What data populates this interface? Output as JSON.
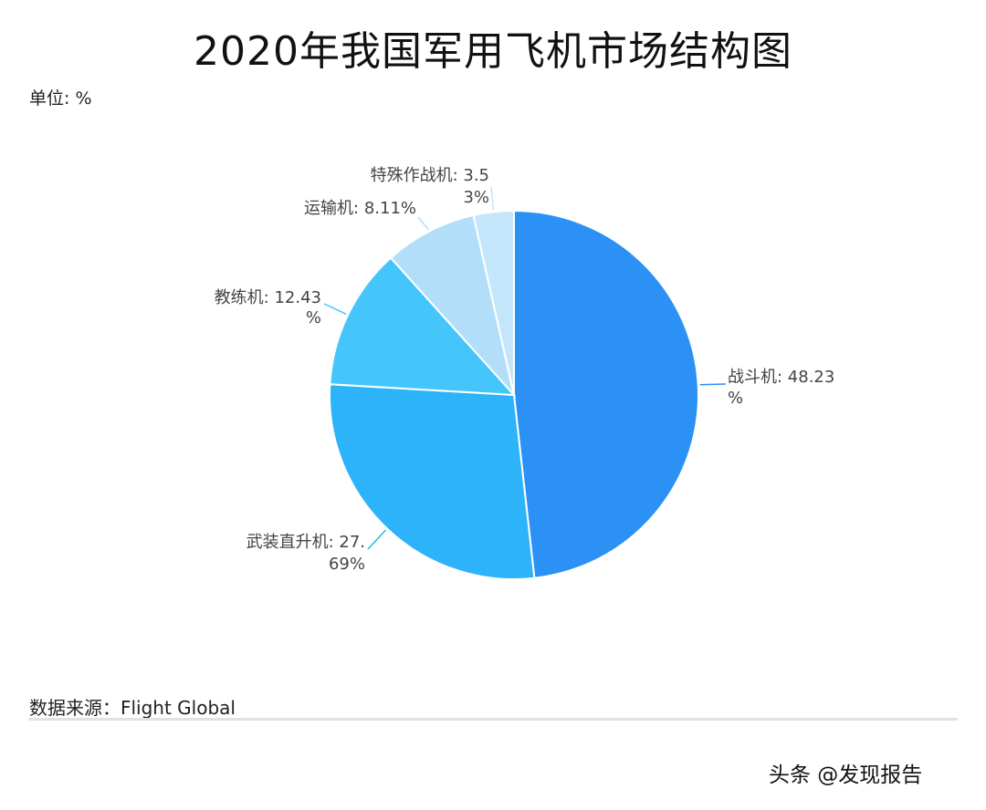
{
  "title": "2020年我国军用飞机市场结构图",
  "unit_label": "单位: %",
  "source_label": "数据来源：Flight Global",
  "watermark": "头条 @发现报告",
  "chart_data": {
    "type": "pie",
    "title": "2020年我国军用飞机市场结构图",
    "unit": "%",
    "start_angle": "12 o'clock, clockwise",
    "categories": [
      "战斗机",
      "武装直升机",
      "教练机",
      "运输机",
      "特殊作战机"
    ],
    "values": [
      48.23,
      27.69,
      12.43,
      8.11,
      3.53
    ],
    "colors": [
      "#2B91F5",
      "#2DB3FA",
      "#45C6FA",
      "#B3DEFA",
      "#C4E6FB"
    ],
    "labels": [
      {
        "line1": "战斗机: 48.23",
        "line2": "%"
      },
      {
        "line1": "武装直升机: 27.",
        "line2": "69%"
      },
      {
        "line1": "教练机: 12.43",
        "line2": "%"
      },
      {
        "line1": "运输机: 8.11%",
        "line2": ""
      },
      {
        "line1": "特殊作战机: 3.5",
        "line2": "3%"
      }
    ],
    "legend": "none",
    "source": "Flight Global"
  }
}
